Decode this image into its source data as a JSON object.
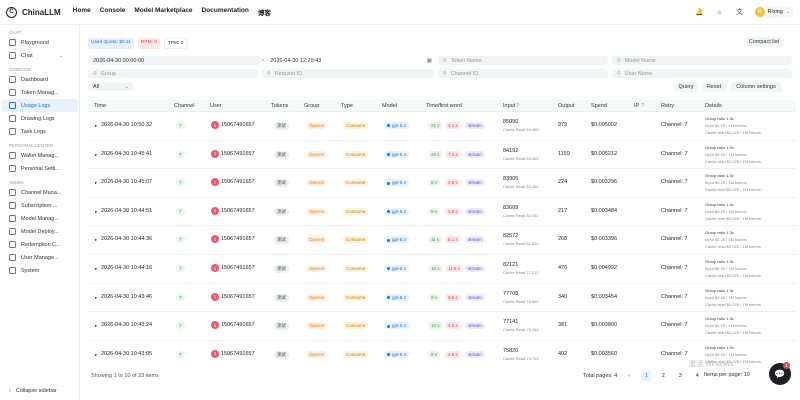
{
  "app": {
    "logo_letter": "C",
    "name": "ChinaLLM"
  },
  "topnav": [
    "Home",
    "Console",
    "Model Marketplace",
    "Documentation",
    "博客"
  ],
  "topbar_icons": {
    "bell": "🔔",
    "sun": "☼",
    "translate": "文"
  },
  "user": {
    "name": "Rixing",
    "initial": "R"
  },
  "sidebar": {
    "groups": [
      {
        "label": "CHAT",
        "items": [
          {
            "label": "Playground"
          },
          {
            "label": "Chat",
            "caret": "⌄"
          }
        ]
      },
      {
        "label": "CONSOLE",
        "items": [
          {
            "label": "Dashboard"
          },
          {
            "label": "Token Manag..."
          },
          {
            "label": "Usage Logs",
            "active": true
          },
          {
            "label": "Drawing Logs"
          },
          {
            "label": "Task Logs"
          }
        ]
      },
      {
        "label": "PERSONAL CENTER",
        "items": [
          {
            "label": "Wallet Manag..."
          },
          {
            "label": "Personal Setti..."
          }
        ]
      },
      {
        "label": "ADMIN",
        "items": [
          {
            "label": "Channel Mana..."
          },
          {
            "label": "Subscription ..."
          },
          {
            "label": "Model Manag..."
          },
          {
            "label": "Model Deploy..."
          },
          {
            "label": "Redemption C..."
          },
          {
            "label": "User Manage..."
          },
          {
            "label": "System"
          }
        ]
      }
    ],
    "collapse_label": "Collapse sidebar",
    "collapse_icon": "‹"
  },
  "quota": {
    "used": "Used Quota: $0.11",
    "rpm": "RPM: 0",
    "tpm": "TPM: 0"
  },
  "compact_label": "Compact list",
  "filters": {
    "start_time": "2026-04-30 00:00:00",
    "end_time": "2026-04-30 12:29:43",
    "token_name": "Token Name",
    "model_name": "Model Name",
    "group": "Group",
    "request_id": "Request ID",
    "channel_id": "Channel ID",
    "user_name": "User Name",
    "type": "All",
    "tilde": "~",
    "search_icon": "⚲",
    "calendar_icon": "▦",
    "chevron": "⌄"
  },
  "buttons": {
    "query": "Query",
    "reset": "Reset",
    "column_settings": "Column settings"
  },
  "columns": [
    "Time",
    "Channel",
    "User",
    "Tokens",
    "Group",
    "Type",
    "Model",
    "Time/first word",
    "Input",
    "Output",
    "Spend",
    "IP",
    "Retry",
    "Details"
  ],
  "help_icon": "?",
  "rows": [
    {
      "time": "2026-04-30 10:50:32",
      "channel": "7",
      "user": "15067491657",
      "token": "测试",
      "group": "OpenAI",
      "type": "Consume",
      "model": "gpt-5.4",
      "t1": "21 s",
      "t2": "4.1 s",
      "stream": "stream",
      "input": "85090",
      "cache": "Cache Read 83,986",
      "output": "979",
      "spend": "$0.005002",
      "retry": "Channel:  7"
    },
    {
      "time": "2026-04-30 10:45:41",
      "channel": "7",
      "user": "15067491657",
      "token": "测试",
      "group": "OpenAI",
      "type": "Consume",
      "model": "gpt-5.4",
      "t1": "26 s",
      "t2": "7.4 s",
      "stream": "stream",
      "input": "84192",
      "cache": "Cache Read 83,456",
      "output": "1159",
      "spend": "$0.005212",
      "retry": "Channel:  7"
    },
    {
      "time": "2026-04-30 10:45:07",
      "channel": "7",
      "user": "15067491657",
      "token": "测试",
      "group": "OpenAI",
      "type": "Consume",
      "model": "gpt-5.4",
      "t1": "8 s",
      "t2": "3.8 s",
      "stream": "stream",
      "input": "83905",
      "cache": "Cache Read 83,456",
      "output": "224",
      "spend": "$0.003296",
      "retry": "Channel:  7"
    },
    {
      "time": "2026-04-30 10:44:51",
      "channel": "7",
      "user": "15067491657",
      "token": "测试",
      "group": "OpenAI",
      "type": "Consume",
      "model": "gpt-5.4",
      "t1": "9 s",
      "t2": "3.6 s",
      "stream": "stream",
      "input": "83609",
      "cache": "Cache Read 82,432",
      "output": "217",
      "spend": "$0.003484",
      "retry": "Channel:  7"
    },
    {
      "time": "2026-04-30 10:44:36",
      "channel": "7",
      "user": "15067491657",
      "token": "测试",
      "group": "OpenAI",
      "type": "Consume",
      "model": "gpt-5.4",
      "t1": "11 s",
      "t2": "5.1 s",
      "stream": "stream",
      "input": "82572",
      "cache": "Cache Read 81,920",
      "output": "268",
      "spend": "$0.003396",
      "retry": "Channel:  7"
    },
    {
      "time": "2026-04-30 10:44:16",
      "channel": "7",
      "user": "15067491657",
      "token": "测试",
      "group": "OpenAI",
      "type": "Consume",
      "model": "gpt-5.4",
      "t1": "16 s",
      "t2": "11.6 s",
      "stream": "stream",
      "input": "82121",
      "cache": "Cache Read 77,312",
      "output": "470",
      "spend": "$0.004992",
      "retry": "Channel:  7"
    },
    {
      "time": "2026-04-30 10:43:46",
      "channel": "7",
      "user": "15067491657",
      "token": "测试",
      "group": "OpenAI",
      "type": "Consume",
      "model": "gpt-5.4",
      "t1": "9 s",
      "t2": "8.5 s",
      "stream": "stream",
      "input": "77708",
      "cache": "Cache Read 76,800",
      "output": "340",
      "spend": "$0.003454",
      "retry": "Channel:  7"
    },
    {
      "time": "2026-04-30 10:43:24",
      "channel": "7",
      "user": "15067491657",
      "token": "测试",
      "group": "OpenAI",
      "type": "Consume",
      "model": "gpt-5.4",
      "t1": "10 s",
      "t2": "4.3 s",
      "stream": "stream",
      "input": "77141",
      "cache": "Cache Read 75,264",
      "output": "381",
      "spend": "$0.003800",
      "retry": "Channel:  7"
    },
    {
      "time": "2026-04-30 10:43:05",
      "channel": "7",
      "user": "15067491657",
      "token": "测试",
      "group": "OpenAI",
      "type": "Consume",
      "model": "gpt-5.4",
      "t1": "9 s",
      "t2": "3.9 s",
      "stream": "stream",
      "input": "75820",
      "cache": "Cache Read 74,752",
      "output": "402",
      "spend": "$0.003560",
      "retry": "Channel:  7"
    }
  ],
  "details": [
    "Group ratio 1.3x",
    "Input $0.25 / 1M tokens",
    "Cache read $0.025 / 1M tokens"
  ],
  "footer": {
    "showing": "Showing 1 to 10 of 33 items",
    "total_pages": "Total pages: 4",
    "prev": "‹",
    "pages": [
      "1",
      "2",
      "3",
      "4"
    ],
    "next": "›",
    "per_page": "Items per page: 10",
    "watermark": "激活 Windows",
    "chat_icon": "💬",
    "chat_badge": "1"
  }
}
